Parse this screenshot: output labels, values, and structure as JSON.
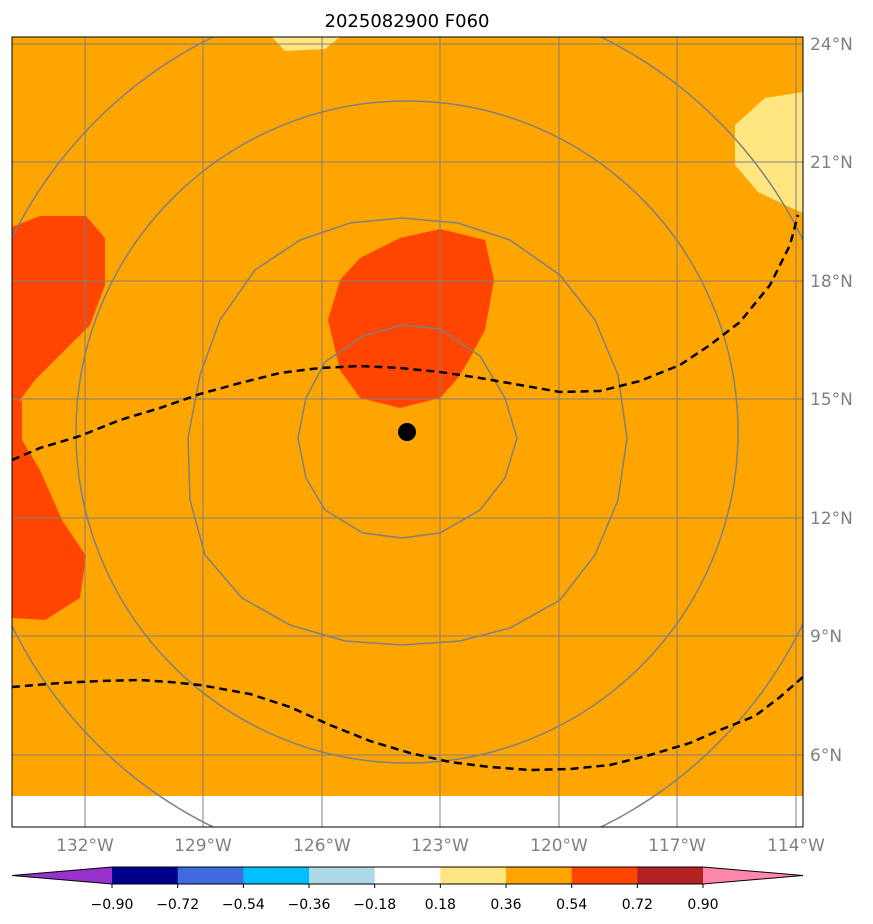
{
  "title": "2025082900 F060",
  "map": {
    "lon_range": [
      -133,
      -114
    ],
    "lat_range": [
      4.5,
      24
    ],
    "background_field_value": "0.36 to 0.54",
    "lon_ticks": [
      "132°W",
      "129°W",
      "126°W",
      "123°W",
      "120°W",
      "117°W",
      "114°W"
    ],
    "lat_ticks": [
      "24°N",
      "21°N",
      "18°N",
      "15°N",
      "12°N",
      "9°N",
      "6°N"
    ],
    "storm_center": {
      "lon": -123.8,
      "lat": 14.2
    }
  },
  "colorbar": {
    "levels": [
      "−0.90",
      "−0.72",
      "−0.54",
      "−0.36",
      "−0.18",
      "0.18",
      "0.36",
      "0.54",
      "0.72",
      "0.90"
    ],
    "colors": [
      "#9932cc",
      "#00008b",
      "#4169e1",
      "#00bfff",
      "#add8e6",
      "#ffffff",
      "#ffe680",
      "#ffa500",
      "#ff4500",
      "#b22222",
      "#ff88aa"
    ]
  },
  "colors": {
    "orange": "#ffa500",
    "red_orange": "#ff4500",
    "light_yellow": "#ffe680",
    "grid": "#808080",
    "dashed": "#000000"
  }
}
